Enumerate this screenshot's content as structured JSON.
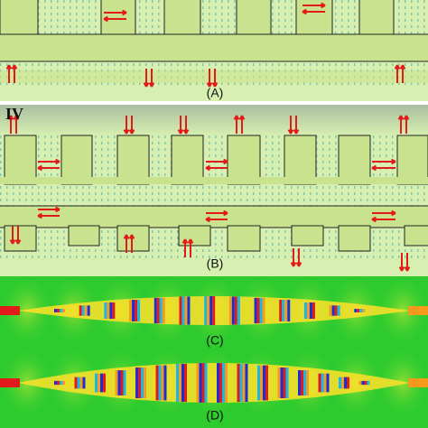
{
  "panels": [
    {
      "label": "(A)"
    },
    {
      "label": "(B)",
      "marker": "IV"
    },
    {
      "label": "(C)"
    },
    {
      "label": "(D)"
    }
  ]
}
